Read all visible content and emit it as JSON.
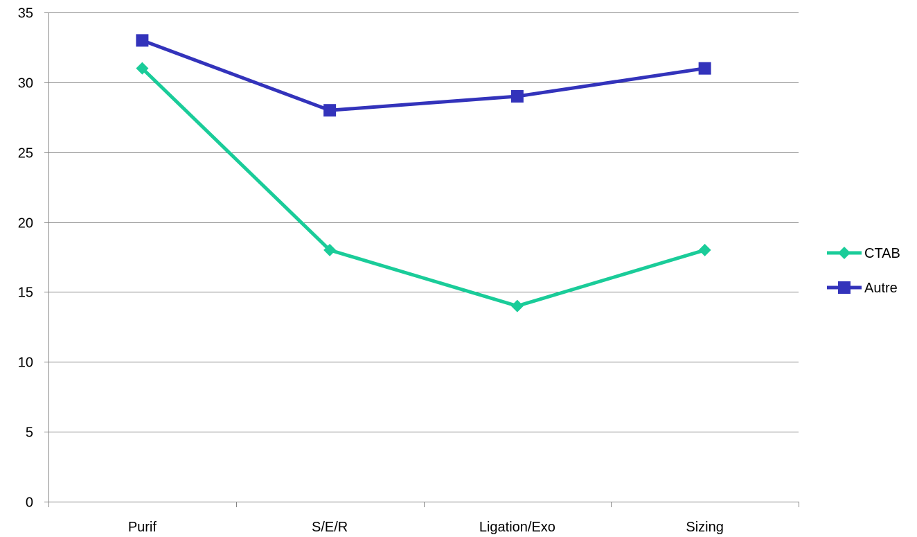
{
  "chart_data": {
    "type": "line",
    "title": "",
    "xlabel": "",
    "ylabel": "",
    "categories": [
      "Purif",
      "S/E/R",
      "Ligation/Exo",
      "Sizing"
    ],
    "ylim": [
      0,
      35
    ],
    "yticks": [
      0,
      5,
      10,
      15,
      20,
      25,
      30,
      35
    ],
    "grid": true,
    "legend_position": "right",
    "series": [
      {
        "name": "CTAB",
        "values": [
          31,
          18,
          14,
          18
        ],
        "color": "#1acc99",
        "marker": "diamond"
      },
      {
        "name": "Autre",
        "values": [
          33,
          28,
          29,
          31
        ],
        "color": "#3333bb",
        "marker": "square"
      }
    ]
  }
}
